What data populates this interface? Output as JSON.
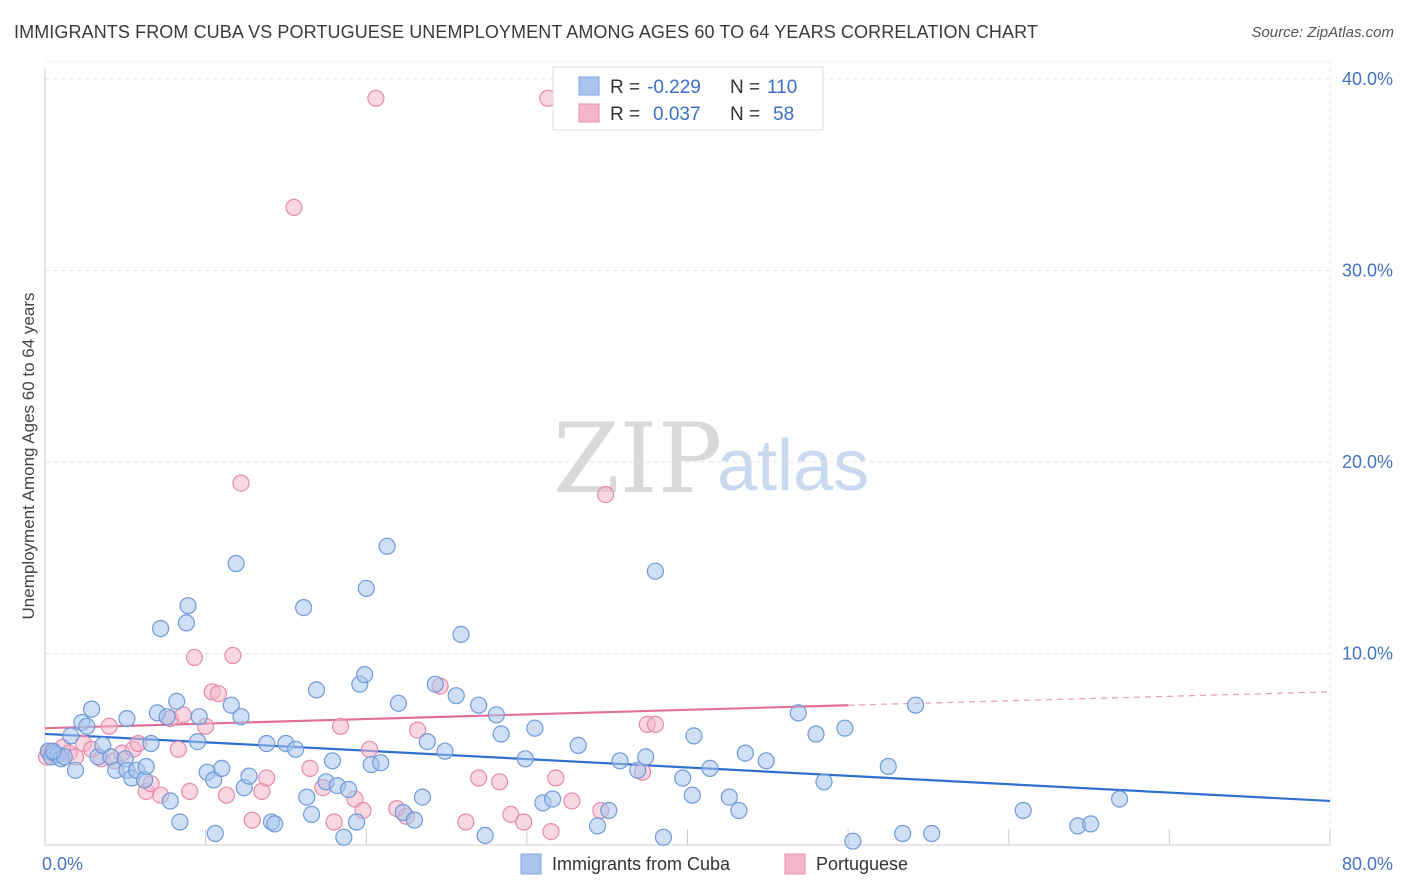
{
  "header": {
    "title": "IMMIGRANTS FROM CUBA VS PORTUGUESE UNEMPLOYMENT AMONG AGES 60 TO 64 YEARS CORRELATION CHART",
    "source": "Source: ZipAtlas.com"
  },
  "watermark": {
    "zip": "ZIP",
    "atlas": "atlas"
  },
  "stats": {
    "series1": {
      "r_label": "R =",
      "r_value": "-0.229",
      "n_label": "N =",
      "n_value": "110"
    },
    "series2": {
      "r_label": "R =",
      "r_value": "0.037",
      "n_label": "N =",
      "n_value": "58"
    }
  },
  "chart_data": {
    "type": "scatter",
    "title": "IMMIGRANTS FROM CUBA VS PORTUGUESE UNEMPLOYMENT AMONG AGES 60 TO 64 YEARS CORRELATION CHART",
    "xlabel": "",
    "ylabel": "Unemployment Among Ages 60 to 64 years",
    "xlim": [
      0,
      80
    ],
    "ylim": [
      0,
      41
    ],
    "x_tick_labels": [
      "0.0%",
      "80.0%"
    ],
    "y_tick_values": [
      10,
      20,
      30,
      40
    ],
    "y_tick_labels": [
      "10.0%",
      "20.0%",
      "30.0%",
      "40.0%"
    ],
    "grid": true,
    "legend_position": "bottom-center",
    "colors": {
      "series1": "#a8c4ec",
      "series1_line": "#2f6fd0",
      "series2": "#f4b6c9",
      "series2_line": "#e0709a"
    },
    "series": [
      {
        "name": "Immigrants from Cuba",
        "r": -0.229,
        "n": 110,
        "trend": {
          "x": [
            0,
            80
          ],
          "y": [
            5.8,
            2.3
          ]
        },
        "points": [
          [
            0.2,
            4.9
          ],
          [
            0.4,
            4.6
          ],
          [
            0.6,
            4.8
          ],
          [
            0.8,
            4.7
          ],
          [
            1.0,
            4.5
          ],
          [
            1.2,
            4.6
          ],
          [
            1.6,
            5.7
          ],
          [
            1.9,
            3.9
          ],
          [
            2.3,
            6.4
          ],
          [
            2.6,
            6.2
          ],
          [
            2.9,
            7.1
          ],
          [
            3.3,
            4.6
          ],
          [
            3.6,
            5.2
          ],
          [
            4.1,
            4.6
          ],
          [
            4.4,
            3.9
          ],
          [
            5.0,
            4.5
          ],
          [
            5.1,
            3.9
          ],
          [
            5.1,
            6.6
          ],
          [
            5.4,
            3.5
          ],
          [
            5.7,
            3.9
          ],
          [
            6.2,
            3.4
          ],
          [
            6.3,
            4.1
          ],
          [
            6.6,
            5.3
          ],
          [
            7.0,
            6.9
          ],
          [
            7.2,
            11.3
          ],
          [
            7.6,
            6.7
          ],
          [
            7.8,
            2.3
          ],
          [
            8.2,
            7.5
          ],
          [
            8.4,
            1.2
          ],
          [
            8.8,
            11.6
          ],
          [
            8.9,
            12.5
          ],
          [
            9.5,
            5.4
          ],
          [
            9.6,
            6.7
          ],
          [
            10.1,
            3.8
          ],
          [
            10.5,
            3.4
          ],
          [
            10.6,
            0.6
          ],
          [
            11.0,
            4.0
          ],
          [
            11.6,
            7.3
          ],
          [
            11.9,
            14.7
          ],
          [
            12.2,
            6.7
          ],
          [
            12.4,
            3.0
          ],
          [
            12.7,
            3.6
          ],
          [
            13.8,
            5.3
          ],
          [
            14.1,
            1.2
          ],
          [
            14.3,
            1.1
          ],
          [
            15.0,
            5.3
          ],
          [
            15.6,
            5.0
          ],
          [
            16.1,
            12.4
          ],
          [
            16.3,
            2.5
          ],
          [
            16.6,
            1.6
          ],
          [
            16.9,
            8.1
          ],
          [
            17.5,
            3.3
          ],
          [
            17.9,
            4.4
          ],
          [
            18.2,
            3.1
          ],
          [
            18.6,
            0.4
          ],
          [
            18.9,
            2.9
          ],
          [
            19.4,
            1.2
          ],
          [
            19.6,
            8.4
          ],
          [
            19.9,
            8.9
          ],
          [
            20.0,
            13.4
          ],
          [
            20.3,
            4.2
          ],
          [
            20.9,
            4.3
          ],
          [
            21.3,
            15.6
          ],
          [
            22.0,
            7.4
          ],
          [
            22.3,
            1.7
          ],
          [
            23.0,
            1.3
          ],
          [
            23.5,
            2.5
          ],
          [
            23.8,
            5.4
          ],
          [
            24.3,
            8.4
          ],
          [
            24.9,
            4.9
          ],
          [
            25.6,
            7.8
          ],
          [
            25.9,
            11.0
          ],
          [
            27.0,
            7.3
          ],
          [
            27.4,
            0.5
          ],
          [
            28.1,
            6.8
          ],
          [
            28.4,
            5.8
          ],
          [
            29.9,
            4.5
          ],
          [
            30.5,
            6.1
          ],
          [
            31.0,
            2.2
          ],
          [
            31.6,
            2.4
          ],
          [
            33.2,
            5.2
          ],
          [
            34.4,
            1.0
          ],
          [
            35.1,
            1.8
          ],
          [
            35.8,
            4.4
          ],
          [
            36.9,
            3.9
          ],
          [
            37.4,
            4.6
          ],
          [
            38.0,
            14.3
          ],
          [
            38.5,
            0.4
          ],
          [
            39.7,
            3.5
          ],
          [
            40.3,
            2.6
          ],
          [
            40.4,
            5.7
          ],
          [
            41.4,
            4.0
          ],
          [
            42.6,
            2.5
          ],
          [
            43.2,
            1.8
          ],
          [
            43.6,
            4.8
          ],
          [
            44.9,
            4.4
          ],
          [
            46.9,
            6.9
          ],
          [
            48.0,
            5.8
          ],
          [
            48.5,
            3.3
          ],
          [
            49.8,
            6.1
          ],
          [
            50.3,
            0.2
          ],
          [
            52.5,
            4.1
          ],
          [
            53.4,
            0.6
          ],
          [
            54.2,
            7.3
          ],
          [
            55.2,
            0.6
          ],
          [
            60.9,
            1.8
          ],
          [
            64.3,
            1.0
          ],
          [
            65.1,
            1.1
          ],
          [
            66.9,
            2.4
          ],
          [
            0.5,
            4.9
          ]
        ]
      },
      {
        "name": "Portuguese",
        "r": 0.037,
        "n": 58,
        "trend": {
          "x": [
            0,
            50
          ],
          "y": [
            6.1,
            7.3
          ],
          "dashed_to": {
            "x": 80,
            "y": 8.0
          }
        },
        "points": [
          [
            0.1,
            4.6
          ],
          [
            0.3,
            4.9
          ],
          [
            0.6,
            4.7
          ],
          [
            1.1,
            5.1
          ],
          [
            1.5,
            4.8
          ],
          [
            1.9,
            4.6
          ],
          [
            2.4,
            5.3
          ],
          [
            2.9,
            5.0
          ],
          [
            3.5,
            4.5
          ],
          [
            4.0,
            6.2
          ],
          [
            4.3,
            4.4
          ],
          [
            4.8,
            4.8
          ],
          [
            5.5,
            5.0
          ],
          [
            5.8,
            5.3
          ],
          [
            6.3,
            2.8
          ],
          [
            6.6,
            3.2
          ],
          [
            7.2,
            2.6
          ],
          [
            7.8,
            6.6
          ],
          [
            8.3,
            5.0
          ],
          [
            8.6,
            6.8
          ],
          [
            9.0,
            2.8
          ],
          [
            9.3,
            9.8
          ],
          [
            10.0,
            6.2
          ],
          [
            10.4,
            8.0
          ],
          [
            10.8,
            7.9
          ],
          [
            11.3,
            2.6
          ],
          [
            11.7,
            9.9
          ],
          [
            12.2,
            18.9
          ],
          [
            12.9,
            1.3
          ],
          [
            13.5,
            2.8
          ],
          [
            13.8,
            3.5
          ],
          [
            15.5,
            33.3
          ],
          [
            16.5,
            4.0
          ],
          [
            17.3,
            3.0
          ],
          [
            18.0,
            1.2
          ],
          [
            18.4,
            6.2
          ],
          [
            19.3,
            2.4
          ],
          [
            19.8,
            1.8
          ],
          [
            20.2,
            5.0
          ],
          [
            20.6,
            39.0
          ],
          [
            21.9,
            1.9
          ],
          [
            22.5,
            1.5
          ],
          [
            23.2,
            6.0
          ],
          [
            24.6,
            8.3
          ],
          [
            26.2,
            1.2
          ],
          [
            27.0,
            3.5
          ],
          [
            28.3,
            3.3
          ],
          [
            29.0,
            1.6
          ],
          [
            29.8,
            1.2
          ],
          [
            31.3,
            39.0
          ],
          [
            31.5,
            0.7
          ],
          [
            31.8,
            3.5
          ],
          [
            32.8,
            2.3
          ],
          [
            34.6,
            1.8
          ],
          [
            34.9,
            18.3
          ],
          [
            37.2,
            3.8
          ],
          [
            37.5,
            6.3
          ],
          [
            38.0,
            6.3
          ]
        ]
      }
    ]
  },
  "legend": {
    "items": [
      {
        "label": "Immigrants from Cuba"
      },
      {
        "label": "Portuguese"
      }
    ]
  }
}
